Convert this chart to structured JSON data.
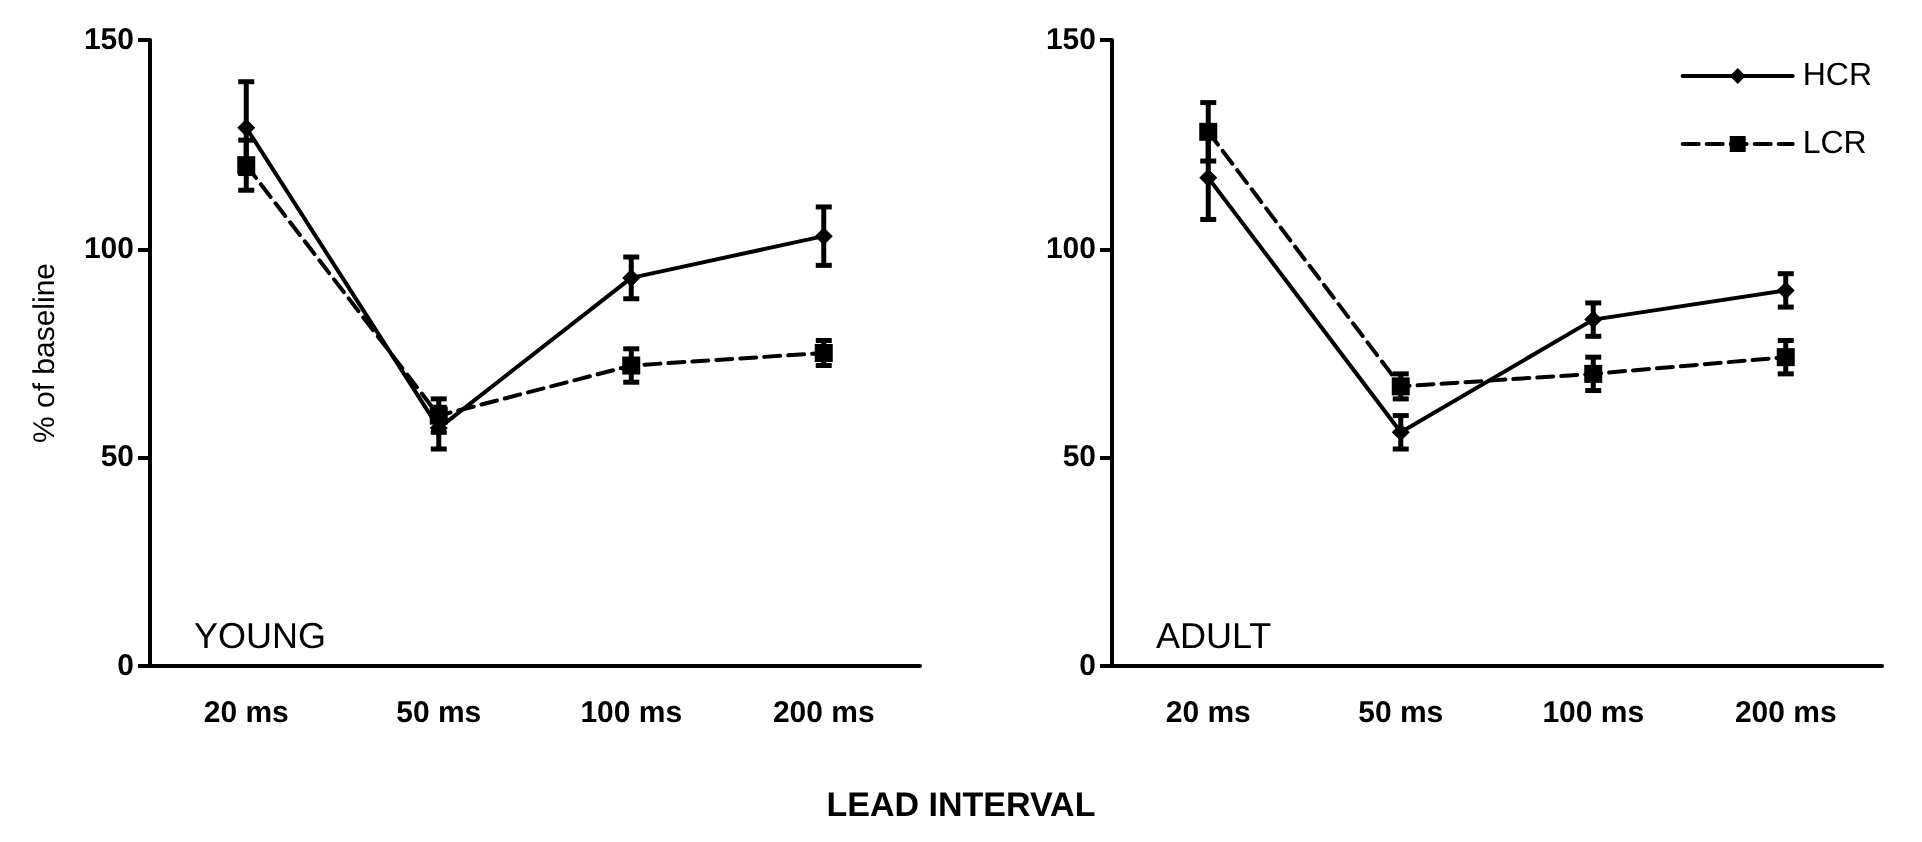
{
  "chart_data": [
    {
      "type": "line",
      "title": "YOUNG",
      "xlabel": "LEAD INTERVAL",
      "ylabel": "% of baseline",
      "categories": [
        "20 ms",
        "50 ms",
        "100 ms",
        "200 ms"
      ],
      "ylim": [
        0,
        150
      ],
      "yticks": [
        0,
        50,
        100,
        150
      ],
      "grid": false,
      "legend": false,
      "series": [
        {
          "color": "#000000",
          "marker": "diamond",
          "line_style": "solid",
          "values": [
            129,
            57,
            93,
            103
          ],
          "errors": [
            11,
            5,
            5,
            7
          ]
        },
        {
          "color": "#000000",
          "marker": "square",
          "line_style": "dashed",
          "values": [
            120,
            60,
            72,
            75
          ],
          "errors": [
            6,
            4,
            4,
            3
          ]
        }
      ]
    },
    {
      "type": "line",
      "title": "ADULT",
      "categories": [
        "20 ms",
        "50 ms",
        "100 ms",
        "200 ms"
      ],
      "ylim": [
        0,
        150
      ],
      "yticks": [
        0,
        50,
        100,
        150
      ],
      "grid": false,
      "legend": "top right",
      "series": [
        {
          "name": "HCR",
          "color": "#000000",
          "marker": "diamond",
          "line_style": "solid",
          "values": [
            117,
            56,
            83,
            90
          ],
          "errors": [
            10,
            4,
            4,
            4
          ]
        },
        {
          "name": "LCR",
          "color": "#000000",
          "marker": "square",
          "line_style": "dashed",
          "values": [
            128,
            67,
            70,
            74
          ],
          "errors": [
            7,
            3,
            4,
            4
          ]
        }
      ]
    }
  ]
}
